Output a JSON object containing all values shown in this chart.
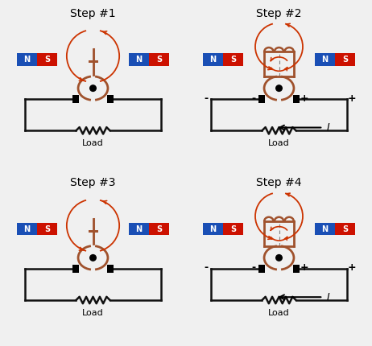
{
  "bg_color": "#f0f0f0",
  "coil_color": "#a0522d",
  "N_color": "#1a4fb5",
  "S_color": "#cc1100",
  "mag_text_color": "#ffffff",
  "circuit_color": "#111111",
  "arrow_color": "#cc3300",
  "panels": [
    {
      "title": "Step #1",
      "horiz": false,
      "show_curr": false,
      "show_pol": false
    },
    {
      "title": "Step #2",
      "horiz": true,
      "show_curr": true,
      "show_pol": true
    },
    {
      "title": "Step #3",
      "horiz": false,
      "show_curr": false,
      "show_pol": false
    },
    {
      "title": "Step #4",
      "horiz": true,
      "show_curr": true,
      "show_pol": true
    }
  ]
}
